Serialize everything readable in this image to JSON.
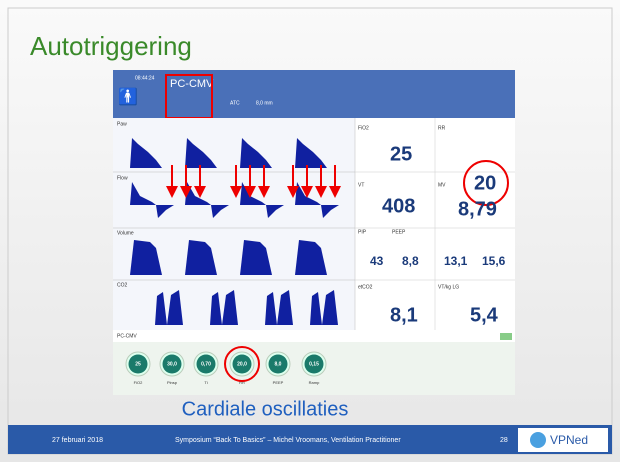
{
  "slide": {
    "title": "Autotriggering",
    "caption": "Cardiale oscillaties",
    "footer": {
      "date": "27 februari 2018",
      "event": "Symposium “Back To Basics” – Michel Vroomans, Ventilation Practitioner",
      "page": "28",
      "logo": "VPNed"
    }
  },
  "ventilator": {
    "time": "08:44:24",
    "mode": "PC-CMV",
    "atc": "ATC",
    "tube": "8,0 mm",
    "waves": [
      "Paw",
      "Flow",
      "Volume",
      "CO2"
    ],
    "params": {
      "fio2_label": "FiO2",
      "fio2": "25",
      "rr_label": "RR",
      "rr": "20",
      "vt_label": "VT",
      "vt": "408",
      "mv_label": "MV",
      "mv": "8,79",
      "pip_label": "PIP",
      "peep_label": "PEEP",
      "pip": "43",
      "peep": "8,8",
      "p3": "13,1",
      "p4": "15,6",
      "etco2_label": "etCO2",
      "etco2": "8,1",
      "vtkg_label": "VT/kg LG",
      "vtkg": "5,4"
    },
    "mode_bar": "PC-CMV",
    "knobs": [
      {
        "value": "25",
        "label": "FiO2"
      },
      {
        "value": "30,0",
        "label": "Pinsp"
      },
      {
        "value": "0,70",
        "label": "Ti"
      },
      {
        "value": "20,0",
        "label": "RR"
      },
      {
        "value": "8,0",
        "label": "PEEP"
      },
      {
        "value": "0,15",
        "label": "Ramp"
      }
    ]
  }
}
